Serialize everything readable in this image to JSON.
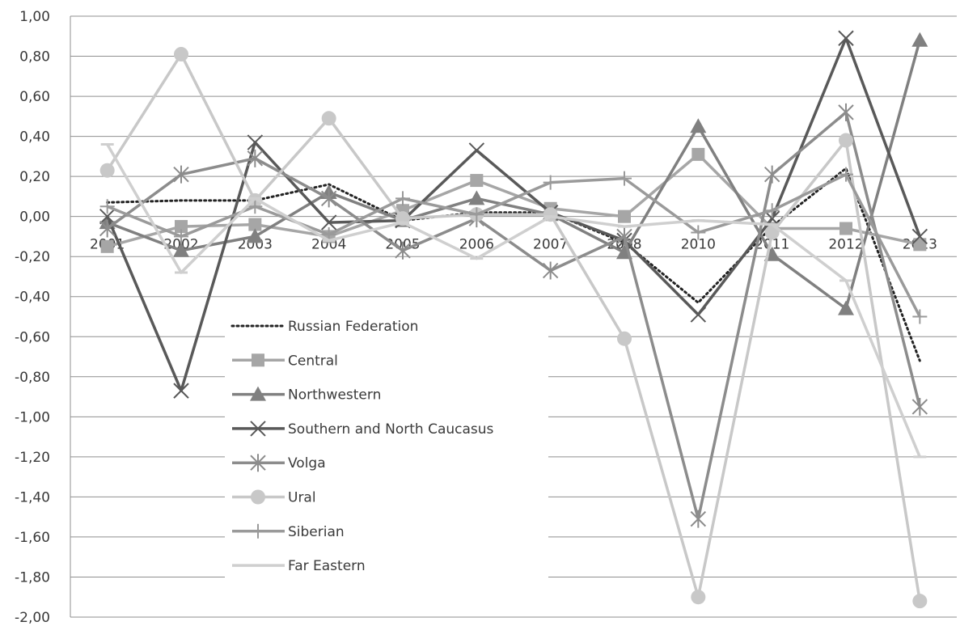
{
  "chart_data": {
    "type": "line",
    "title": "",
    "xlabel": "",
    "ylabel": "",
    "categories": [
      "2001",
      "2002",
      "2003",
      "2004",
      "2005",
      "2006",
      "2007",
      "2008",
      "2010",
      "2011",
      "2012",
      "2013"
    ],
    "y_tick_labels": [
      "1,00",
      "0,80",
      "0,60",
      "0,40",
      "0,20",
      "0,00",
      "-0,20",
      "-0,40",
      "-0,60",
      "-0,80",
      "-1,00",
      "-1,20",
      "-1,40",
      "-1,60",
      "-1,80",
      "-2,00"
    ],
    "ylim": [
      -2.0,
      1.0
    ],
    "grid": true,
    "legend_position": "inside-lower-left",
    "series": [
      {
        "name": "Russian Federation",
        "color": "#222222",
        "style": "dotted",
        "marker": "none",
        "values": [
          0.07,
          0.08,
          0.08,
          0.16,
          -0.02,
          0.02,
          0.02,
          -0.13,
          -0.43,
          -0.05,
          0.24,
          -0.72
        ]
      },
      {
        "name": "Central",
        "color": "#a6a6a6",
        "style": "solid",
        "marker": "square",
        "values": [
          -0.15,
          -0.05,
          -0.04,
          -0.1,
          0.03,
          0.18,
          0.04,
          0.0,
          0.31,
          -0.06,
          -0.06,
          -0.14
        ]
      },
      {
        "name": "Northwestern",
        "color": "#808080",
        "style": "solid",
        "marker": "triangle",
        "values": [
          -0.03,
          -0.17,
          -0.1,
          0.12,
          -0.02,
          0.09,
          0.01,
          -0.18,
          0.45,
          -0.19,
          -0.46,
          0.88
        ]
      },
      {
        "name": "Southern and North Caucasus",
        "color": "#595959",
        "style": "solid",
        "marker": "x",
        "values": [
          0.0,
          -0.87,
          0.37,
          -0.03,
          -0.02,
          0.33,
          0.02,
          -0.12,
          -0.49,
          -0.01,
          0.89,
          -0.1
        ]
      },
      {
        "name": "Volga",
        "color": "#8c8c8c",
        "style": "solid",
        "marker": "star",
        "values": [
          -0.06,
          0.21,
          0.29,
          0.09,
          -0.17,
          -0.01,
          -0.27,
          -0.1,
          -1.51,
          0.21,
          0.52,
          -0.95
        ]
      },
      {
        "name": "Ural",
        "color": "#c8c8c8",
        "style": "solid",
        "marker": "circle",
        "values": [
          0.23,
          0.81,
          0.08,
          0.49,
          -0.01,
          0.01,
          0.01,
          -0.61,
          -1.9,
          -0.08,
          0.38,
          -1.92
        ]
      },
      {
        "name": "Siberian",
        "color": "#9a9a9a",
        "style": "solid",
        "marker": "plus",
        "values": [
          0.05,
          -0.1,
          0.05,
          -0.09,
          0.09,
          0.01,
          0.17,
          0.19,
          -0.08,
          0.03,
          0.21,
          -0.5
        ]
      },
      {
        "name": "Far Eastern",
        "color": "#cfcfcf",
        "style": "solid",
        "marker": "dash",
        "values": [
          0.36,
          -0.28,
          0.09,
          -0.12,
          -0.03,
          -0.21,
          0.0,
          -0.05,
          -0.02,
          -0.04,
          -0.32,
          -1.2
        ]
      }
    ]
  }
}
